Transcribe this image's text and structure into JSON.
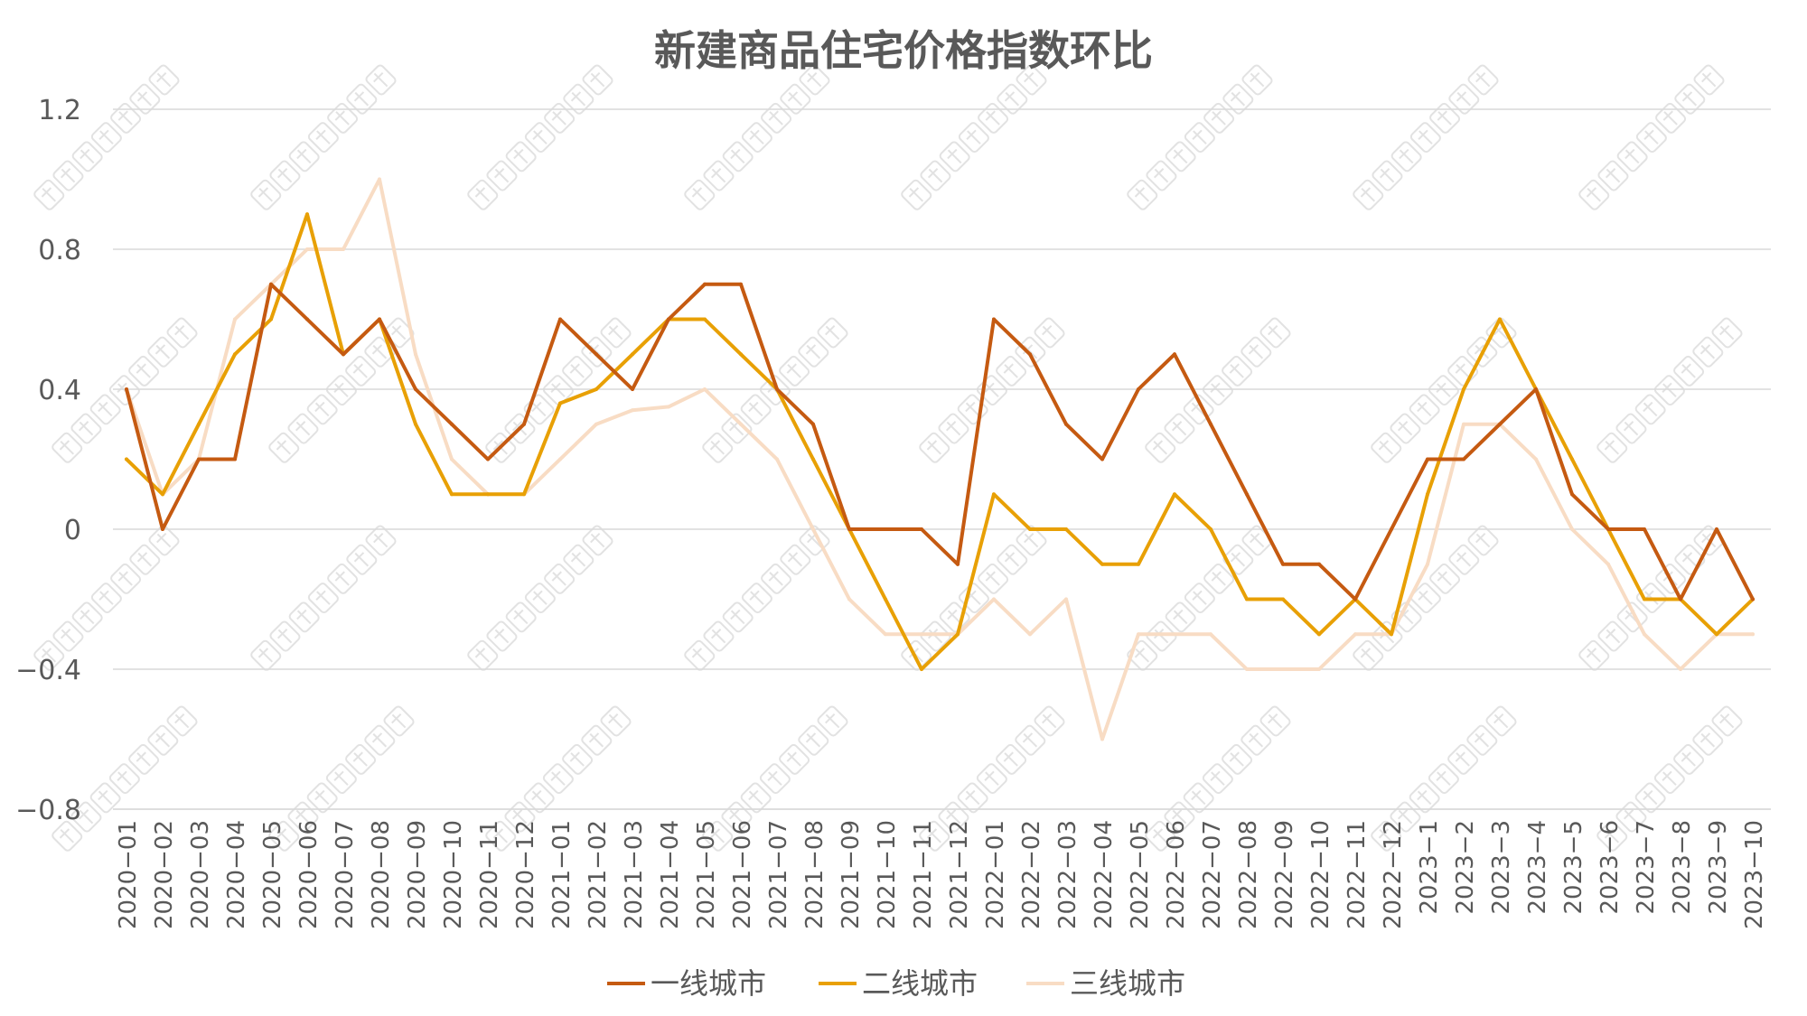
{
  "chart_data": {
    "type": "line",
    "title": "新建商品住宅价格指数环比",
    "xlabel": "",
    "ylabel": "",
    "ylim": [
      -0.8,
      1.2
    ],
    "yticks": [
      1.2,
      0.8,
      0.4,
      0,
      -0.4,
      -0.8
    ],
    "ytick_labels": [
      "1.2",
      "0.8",
      "0.4",
      "0",
      "−0.4",
      "−0.8"
    ],
    "grid": true,
    "legend": "bottom",
    "categories": [
      "2020-01",
      "2020-02",
      "2020-03",
      "2020-04",
      "2020-05",
      "2020-06",
      "2020-07",
      "2020-08",
      "2020-09",
      "2020-10",
      "2020-11",
      "2020-12",
      "2021-01",
      "2021-02",
      "2021-03",
      "2021-04",
      "2021-05",
      "2021-06",
      "2021-07",
      "2021-08",
      "2021-09",
      "2021-10",
      "2021-11",
      "2021-12",
      "2022-01",
      "2022-02",
      "2022-03",
      "2022-04",
      "2022-05",
      "2022-06",
      "2022-07",
      "2022-08",
      "2022-09",
      "2022-10",
      "2022-11",
      "2022-12",
      "2023-1",
      "2023-2",
      "2023-3",
      "2023-4",
      "2023-5",
      "2023-6",
      "2023-7",
      "2023-8",
      "2023-9",
      "2023-10"
    ],
    "category_labels": [
      "2020−01",
      "2020−02",
      "2020−03",
      "2020−04",
      "2020−05",
      "2020−06",
      "2020−07",
      "2020−08",
      "2020−09",
      "2020−10",
      "2020−11",
      "2020−12",
      "2021−01",
      "2021−02",
      "2021−03",
      "2021−04",
      "2021−05",
      "2021−06",
      "2021−07",
      "2021−08",
      "2021−09",
      "2021−10",
      "2021−11",
      "2021−12",
      "2022−01",
      "2022−02",
      "2022−03",
      "2022−04",
      "2022−05",
      "2022−06",
      "2022−07",
      "2022−08",
      "2022−09",
      "2022−10",
      "2022−11",
      "2022−12",
      "2023−1",
      "2023−2",
      "2023−3",
      "2023−4",
      "2023−5",
      "2023−6",
      "2023−7",
      "2023−8",
      "2023−9",
      "2023−10"
    ],
    "series": [
      {
        "name": "一线城市",
        "color": "#c55a11",
        "values": [
          0.4,
          0.0,
          0.2,
          0.2,
          0.7,
          0.6,
          0.5,
          0.6,
          0.4,
          0.3,
          0.2,
          0.3,
          0.6,
          0.5,
          0.4,
          0.6,
          0.7,
          0.7,
          0.4,
          0.3,
          0.0,
          0.0,
          0.0,
          -0.1,
          0.6,
          0.5,
          0.3,
          0.2,
          0.4,
          0.5,
          0.3,
          0.1,
          -0.1,
          -0.1,
          -0.2,
          0.0,
          0.2,
          0.2,
          0.3,
          0.4,
          0.1,
          0.0,
          0.0,
          -0.2,
          0.0,
          -0.2
        ]
      },
      {
        "name": "二线城市",
        "color": "#e8a005",
        "values": [
          0.2,
          0.1,
          0.3,
          0.5,
          0.6,
          0.9,
          0.5,
          0.6,
          0.3,
          0.1,
          0.1,
          0.1,
          0.36,
          0.4,
          0.5,
          0.6,
          0.6,
          0.5,
          0.4,
          0.2,
          0.0,
          -0.2,
          -0.4,
          -0.3,
          0.1,
          0.0,
          0.0,
          -0.1,
          -0.1,
          0.1,
          0.0,
          -0.2,
          -0.2,
          -0.3,
          -0.2,
          -0.3,
          0.1,
          0.4,
          0.6,
          0.4,
          0.2,
          0.0,
          -0.2,
          -0.2,
          -0.3,
          -0.2
        ]
      },
      {
        "name": "三线城市",
        "color": "#f8dcc4",
        "values": [
          0.4,
          0.1,
          0.2,
          0.6,
          0.7,
          0.8,
          0.8,
          1.0,
          0.5,
          0.2,
          0.1,
          0.1,
          0.2,
          0.3,
          0.34,
          0.35,
          0.4,
          0.3,
          0.2,
          0.0,
          -0.2,
          -0.3,
          -0.3,
          -0.3,
          -0.2,
          -0.3,
          -0.2,
          -0.6,
          -0.3,
          -0.3,
          -0.3,
          -0.4,
          -0.4,
          -0.4,
          -0.3,
          -0.3,
          -0.1,
          0.3,
          0.3,
          0.2,
          0.0,
          -0.1,
          -0.3,
          -0.4,
          -0.3,
          -0.3
        ]
      }
    ]
  }
}
